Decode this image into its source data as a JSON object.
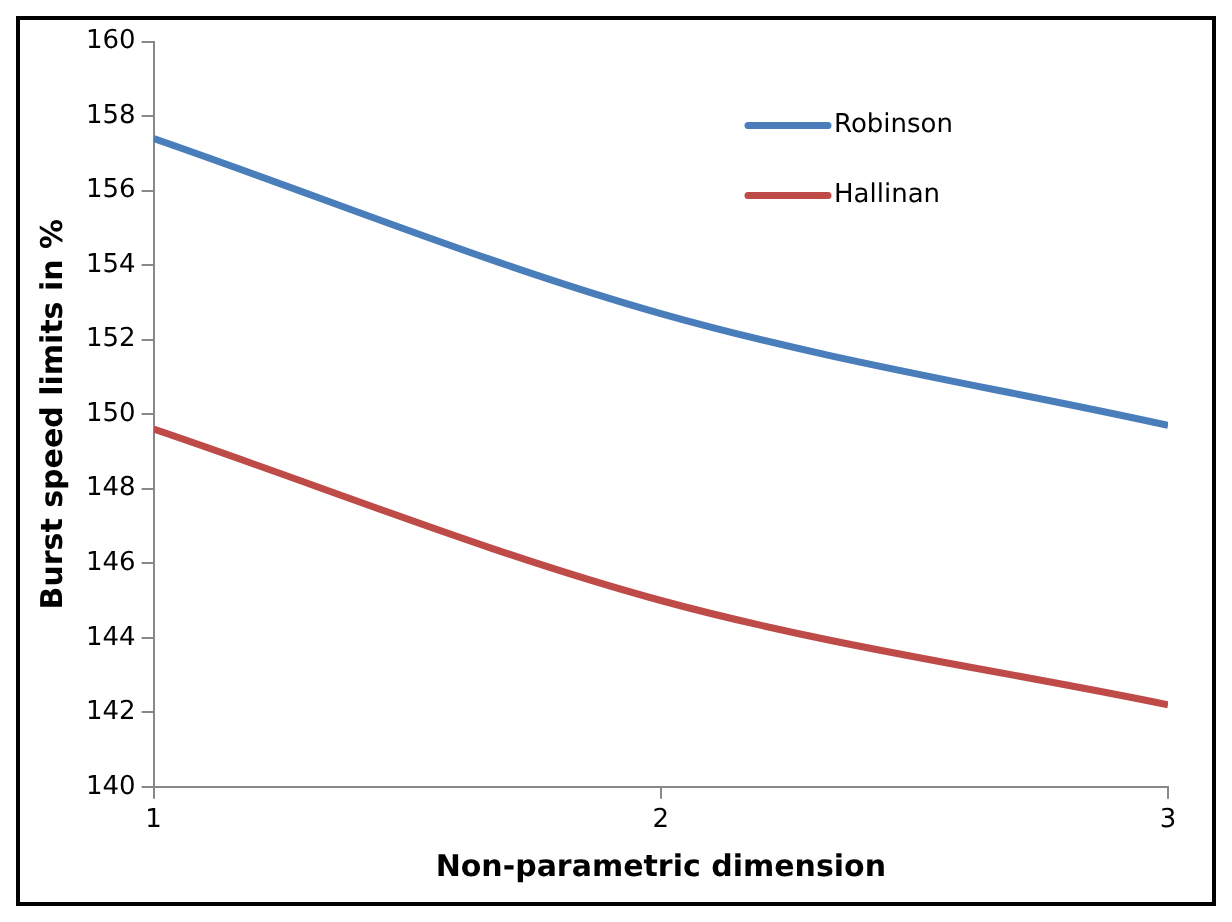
{
  "chart_data": {
    "type": "line",
    "xlabel": "Non-parametric dimension",
    "ylabel": "Burst speed limits in %",
    "x": [
      1,
      2,
      3
    ],
    "series": [
      {
        "name": "Robinson",
        "color": "#4a7ebb",
        "values": [
          157.4,
          152.7,
          149.7
        ]
      },
      {
        "name": "Hallinan",
        "color": "#be4b48",
        "values": [
          149.6,
          145.0,
          142.2
        ]
      }
    ],
    "xlim": [
      1,
      3
    ],
    "xticks": [
      1,
      2,
      3
    ],
    "ylim": [
      140,
      160
    ],
    "yticks": [
      140,
      142,
      144,
      146,
      148,
      150,
      152,
      154,
      156,
      158,
      160
    ],
    "grid": false,
    "legend": "top right",
    "marker": "none",
    "line_style": "solid"
  }
}
